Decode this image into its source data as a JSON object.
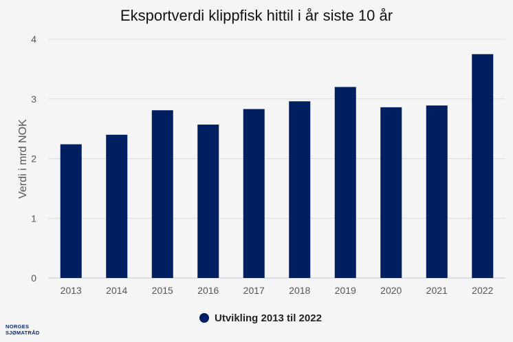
{
  "chart_data": {
    "type": "bar",
    "title": "Eksportverdi klippfisk hittil i år siste 10 år",
    "xlabel": "",
    "ylabel": "Verdi i mrd NOK",
    "categories": [
      "2013",
      "2014",
      "2015",
      "2016",
      "2017",
      "2018",
      "2019",
      "2020",
      "2021",
      "2022"
    ],
    "series": [
      {
        "name": "Utvikling 2013 til 2022",
        "values": [
          2.24,
          2.4,
          2.81,
          2.57,
          2.83,
          2.96,
          3.2,
          2.86,
          2.89,
          3.75
        ],
        "color": "#001f60"
      }
    ],
    "ylim": [
      0,
      4
    ],
    "yticks": [
      "0",
      "1",
      "2",
      "3",
      "4"
    ],
    "grid": true,
    "legend_position": "bottom"
  },
  "brand": {
    "line1": "NORGES",
    "line2": "SJØMATRÅD",
    "color": "#0b2a6f"
  },
  "colors": {
    "background": "#f5f5f5",
    "grid": "#dcdcdc",
    "axis": "#bfc7d9"
  }
}
